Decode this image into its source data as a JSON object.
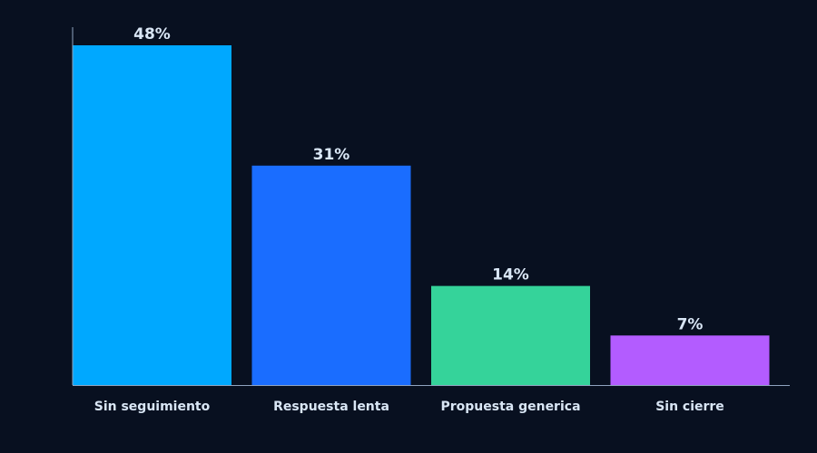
{
  "chart_data": {
    "type": "bar",
    "categories": [
      "Sin seguimiento",
      "Respuesta lenta",
      "Propuesta generica",
      "Sin cierre"
    ],
    "values": [
      48,
      31,
      14,
      7
    ],
    "value_labels": [
      "48%",
      "31%",
      "14%",
      "7%"
    ],
    "colors": [
      "#00a8ff",
      "#1a6dff",
      "#35d39a",
      "#b35cff"
    ],
    "title": "",
    "xlabel": "",
    "ylabel": "",
    "ylim": [
      0,
      48
    ],
    "grid": false,
    "legend": "none",
    "background": "#081020",
    "text_color": "#d9e6f5",
    "axis_color": "#8fa3bf"
  }
}
